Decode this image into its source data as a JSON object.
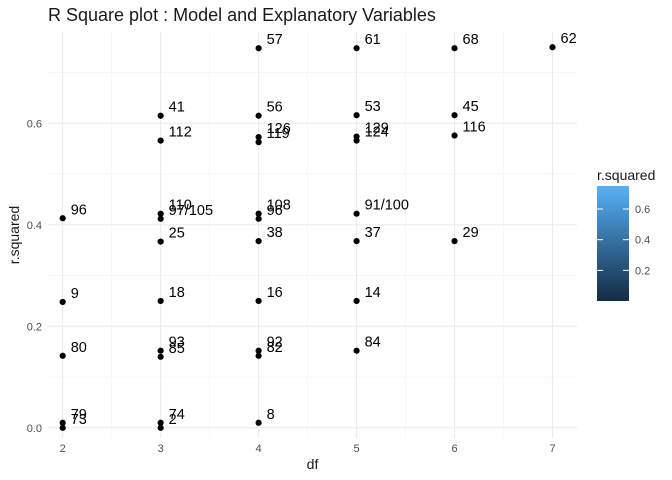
{
  "title": "R Square plot : Model and Explanatory Variables",
  "chart_data": {
    "type": "scatter",
    "title": "R Square plot : Model and Explanatory Variables",
    "xlabel": "df",
    "ylabel": "r.squared",
    "xlim": [
      1.85,
      7.25
    ],
    "ylim": [
      -0.02,
      0.78
    ],
    "x_ticks": [
      2,
      3,
      4,
      5,
      6,
      7
    ],
    "y_ticks": [
      0.0,
      0.2,
      0.4,
      0.6
    ],
    "y_tick_labels": [
      "0.0",
      "0.2",
      "0.4",
      "0.6"
    ],
    "grid": true,
    "legend": {
      "title": "r.squared",
      "type": "colorbar",
      "placement": "right",
      "ticks": [
        0.2,
        0.4,
        0.6
      ],
      "tick_labels": [
        "0.2",
        "0.4",
        "0.6"
      ],
      "range": [
        0.0,
        0.75
      ],
      "low_color": "#132B43",
      "high_color": "#56B1F7"
    },
    "points": [
      {
        "x": 2,
        "y": 0.413,
        "label": "96"
      },
      {
        "x": 2,
        "y": 0.248,
        "label": "9"
      },
      {
        "x": 2,
        "y": 0.142,
        "label": "80"
      },
      {
        "x": 2,
        "y": 0.01,
        "label": "79"
      },
      {
        "x": 2,
        "y": 0.0,
        "label": "73"
      },
      {
        "x": 3,
        "y": 0.615,
        "label": "41"
      },
      {
        "x": 3,
        "y": 0.566,
        "label": "112"
      },
      {
        "x": 3,
        "y": 0.422,
        "label": "110"
      },
      {
        "x": 3,
        "y": 0.412,
        "label": "97/105"
      },
      {
        "x": 3,
        "y": 0.367,
        "label": "25"
      },
      {
        "x": 3,
        "y": 0.25,
        "label": "18"
      },
      {
        "x": 3,
        "y": 0.152,
        "label": "93"
      },
      {
        "x": 3,
        "y": 0.14,
        "label": "85"
      },
      {
        "x": 3,
        "y": 0.01,
        "label": "74"
      },
      {
        "x": 3,
        "y": 0.0,
        "label": "2"
      },
      {
        "x": 4,
        "y": 0.748,
        "label": "57"
      },
      {
        "x": 4,
        "y": 0.615,
        "label": "56"
      },
      {
        "x": 4,
        "y": 0.573,
        "label": "126"
      },
      {
        "x": 4,
        "y": 0.563,
        "label": "119"
      },
      {
        "x": 4,
        "y": 0.422,
        "label": "108"
      },
      {
        "x": 4,
        "y": 0.412,
        "label": "96"
      },
      {
        "x": 4,
        "y": 0.368,
        "label": "38"
      },
      {
        "x": 4,
        "y": 0.25,
        "label": "16"
      },
      {
        "x": 4,
        "y": 0.152,
        "label": "92"
      },
      {
        "x": 4,
        "y": 0.142,
        "label": "82"
      },
      {
        "x": 4,
        "y": 0.01,
        "label": "8"
      },
      {
        "x": 5,
        "y": 0.748,
        "label": "61"
      },
      {
        "x": 5,
        "y": 0.616,
        "label": "53"
      },
      {
        "x": 5,
        "y": 0.574,
        "label": "129"
      },
      {
        "x": 5,
        "y": 0.566,
        "label": "124"
      },
      {
        "x": 5,
        "y": 0.422,
        "label": "91/100"
      },
      {
        "x": 5,
        "y": 0.368,
        "label": "37"
      },
      {
        "x": 5,
        "y": 0.25,
        "label": "14"
      },
      {
        "x": 5,
        "y": 0.152,
        "label": "84"
      },
      {
        "x": 6,
        "y": 0.748,
        "label": "68"
      },
      {
        "x": 6,
        "y": 0.616,
        "label": "45"
      },
      {
        "x": 6,
        "y": 0.576,
        "label": "116"
      },
      {
        "x": 6,
        "y": 0.368,
        "label": "29"
      },
      {
        "x": 7,
        "y": 0.75,
        "label": "62"
      }
    ]
  }
}
